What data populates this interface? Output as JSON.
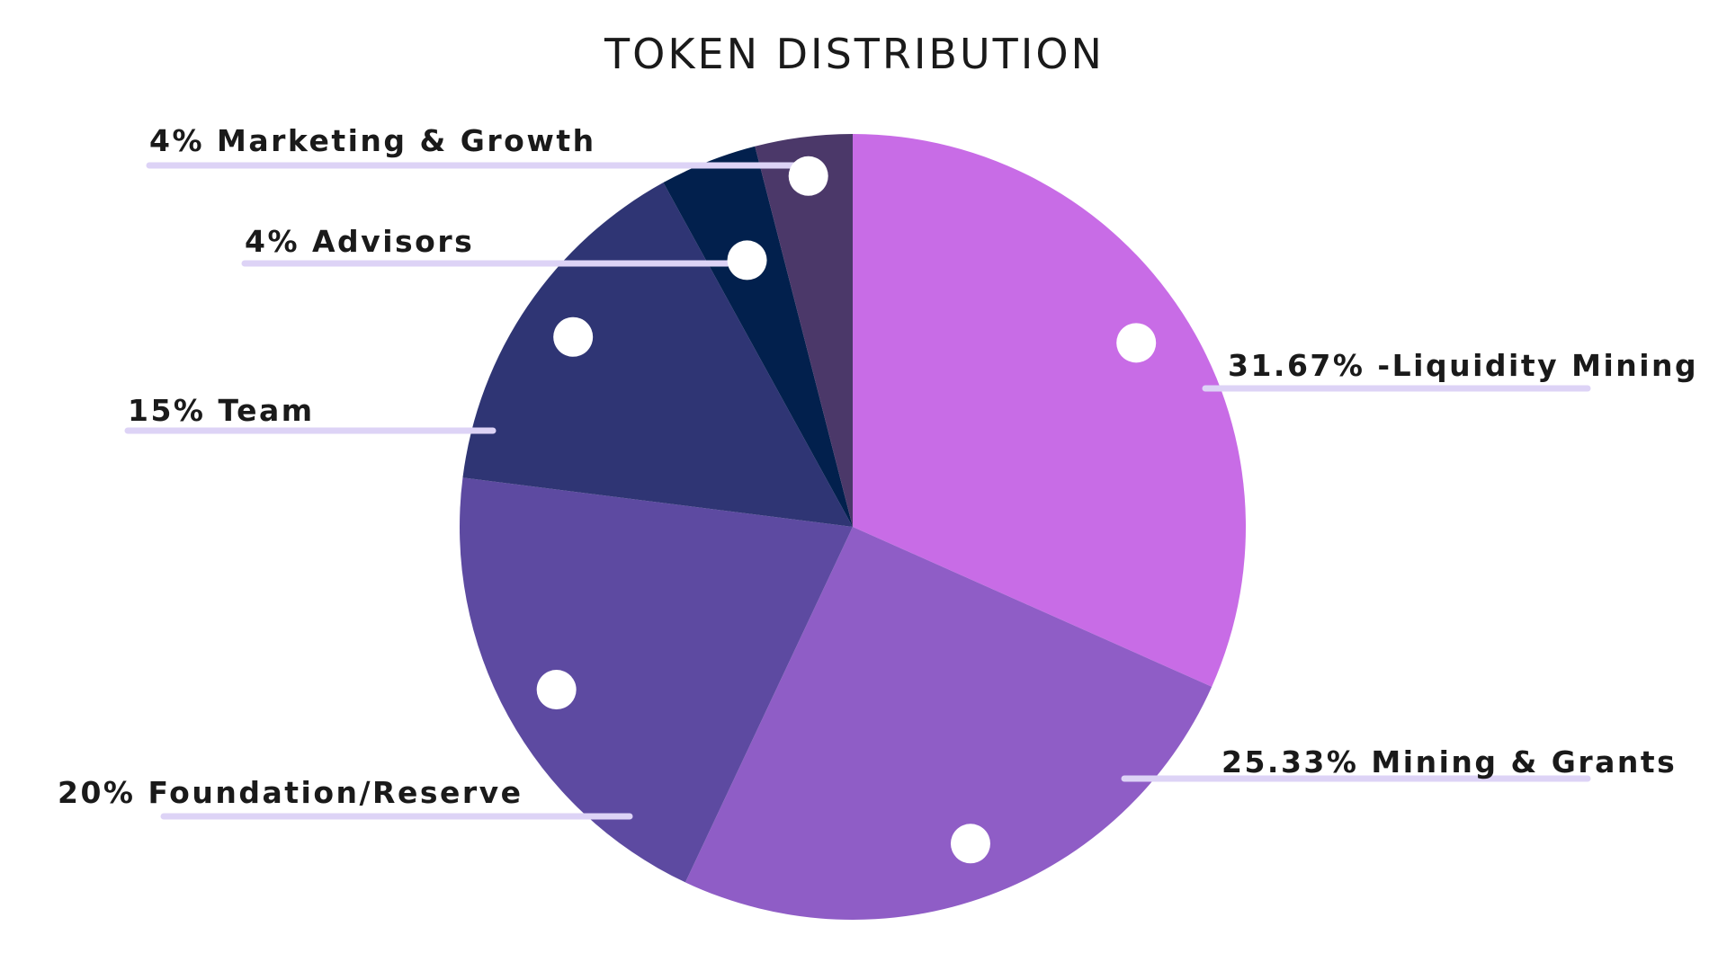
{
  "chart_data": {
    "type": "pie",
    "title": "TOKEN DISTRIBUTION",
    "slices": [
      {
        "label": "31.67% -Liquidity Mining",
        "value": 31.67,
        "color": "#c86ce6"
      },
      {
        "label": "25.33% Mining & Grants",
        "value": 25.33,
        "color": "#8f5dc6"
      },
      {
        "label": "20% Foundation/Reserve",
        "value": 20,
        "color": "#5d4aa1"
      },
      {
        "label": "15% Team",
        "value": 15,
        "color": "#2f3574"
      },
      {
        "label": "4% Advisors",
        "value": 4,
        "color": "#02204d"
      },
      {
        "label": "4% Marketing & Growth",
        "value": 4,
        "color": "#4b3869"
      }
    ],
    "start_angle": "12 o'clock",
    "direction": "clockwise",
    "legend": "none",
    "labels": "outside with leader lines"
  }
}
